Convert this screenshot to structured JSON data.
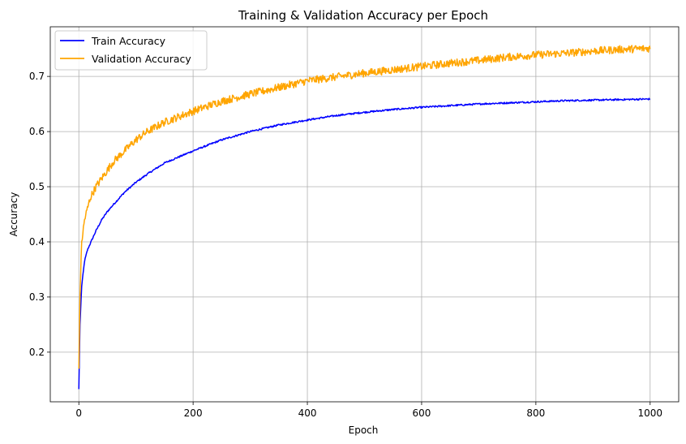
{
  "chart_data": {
    "type": "line",
    "title": "Training & Validation Accuracy per Epoch",
    "xlabel": "Epoch",
    "ylabel": "Accuracy",
    "xlim": [
      -50,
      1050
    ],
    "ylim": [
      0.11,
      0.79
    ],
    "xticks": [
      0,
      200,
      400,
      600,
      800,
      1000
    ],
    "yticks": [
      0.2,
      0.3,
      0.4,
      0.5,
      0.6,
      0.7
    ],
    "xtick_labels": [
      "0",
      "200",
      "400",
      "600",
      "800",
      "1000"
    ],
    "ytick_labels": [
      "0.2",
      "0.3",
      "0.4",
      "0.5",
      "0.6",
      "0.7"
    ],
    "grid": true,
    "legend": "top-left",
    "series": [
      {
        "name": "Train Accuracy",
        "color": "#0000ff",
        "x": [
          0,
          2,
          5,
          10,
          15,
          20,
          30,
          40,
          50,
          60,
          80,
          100,
          120,
          150,
          200,
          250,
          300,
          350,
          400,
          450,
          500,
          550,
          600,
          650,
          700,
          750,
          800,
          850,
          900,
          950,
          1000
        ],
        "y": [
          0.133,
          0.25,
          0.32,
          0.365,
          0.385,
          0.397,
          0.42,
          0.44,
          0.455,
          0.467,
          0.49,
          0.508,
          0.523,
          0.543,
          0.565,
          0.585,
          0.6,
          0.612,
          0.621,
          0.629,
          0.635,
          0.64,
          0.644,
          0.647,
          0.65,
          0.652,
          0.654,
          0.656,
          0.657,
          0.658,
          0.659
        ],
        "noise": 0.0015
      },
      {
        "name": "Validation Accuracy",
        "color": "#ffa500",
        "x": [
          0,
          2,
          5,
          10,
          15,
          20,
          30,
          40,
          50,
          60,
          80,
          100,
          120,
          150,
          200,
          250,
          300,
          350,
          400,
          450,
          500,
          550,
          600,
          650,
          700,
          750,
          800,
          850,
          900,
          950,
          1000
        ],
        "y": [
          0.17,
          0.3,
          0.4,
          0.44,
          0.46,
          0.48,
          0.5,
          0.515,
          0.53,
          0.545,
          0.565,
          0.585,
          0.6,
          0.617,
          0.637,
          0.655,
          0.668,
          0.68,
          0.692,
          0.699,
          0.706,
          0.712,
          0.718,
          0.724,
          0.729,
          0.735,
          0.739,
          0.742,
          0.746,
          0.749,
          0.751
        ],
        "noise": 0.007
      }
    ]
  }
}
